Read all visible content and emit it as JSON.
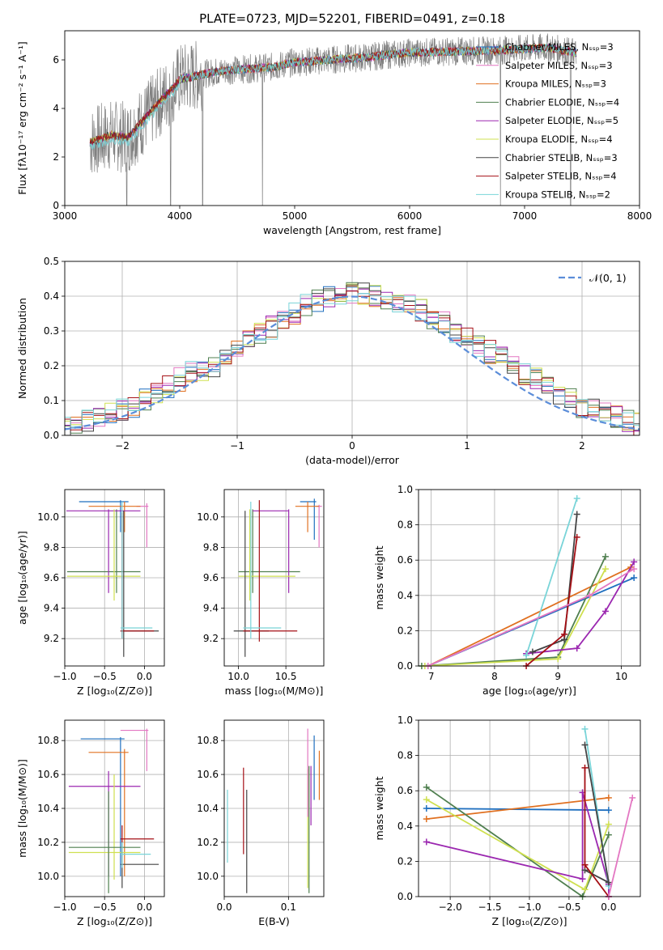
{
  "colors": {
    "chabrier_miles": "#1f6fbf",
    "salpeter_miles": "#e377c2",
    "kroupa_miles": "#e07020",
    "chabrier_elodie": "#4f7f4f",
    "salpeter_elodie": "#9b27b0",
    "kroupa_elodie": "#cfe050",
    "chabrier_stelib": "#444444",
    "salpeter_stelib": "#a50f15",
    "kroupa_stelib": "#79d4d8",
    "gauss": "#5b8dd9",
    "data": "#808080"
  },
  "chart_data": [
    {
      "id": "spectrum",
      "type": "line",
      "title": "PLATE=0723, MJD=52201, FIBERID=0491, z=0.18",
      "xlabel": "wavelength [Angstrom, rest frame]",
      "ylabel": "Flux [fλ10⁻¹⁷ erg cm⁻² s⁻¹ A⁻¹]",
      "xlim": [
        3000,
        8000
      ],
      "ylim": [
        0,
        7.2
      ],
      "xticks": [
        "3000",
        "4000",
        "5000",
        "6000",
        "7000",
        "8000"
      ],
      "yticks": [
        "0",
        "2",
        "4",
        "6"
      ],
      "grid": false,
      "legend_position": "top-right",
      "legend": [
        "Chabrier MILES, N_SSP=3",
        "Salpeter MILES, N_SSP=3",
        "Kroupa MILES, N_SSP=3",
        "Chabrier ELODIE, N_SSP=4",
        "Salpeter ELODIE, N_SSP=5",
        "Kroupa ELODIE, N_SSP=4",
        "Chabrier STELIB, N_SSP=3",
        "Salpeter STELIB, N_SSP=4",
        "Kroupa STELIB, N_SSP=2"
      ],
      "model_curve": {
        "x": [
          3220,
          3400,
          3550,
          3700,
          3850,
          3950,
          4000,
          4100,
          4300,
          4500,
          4800,
          5000,
          5300,
          5600,
          6000,
          6400,
          6800,
          7200,
          7450
        ],
        "y": [
          2.6,
          2.9,
          2.8,
          3.6,
          4.4,
          4.9,
          5.2,
          5.3,
          5.5,
          5.6,
          5.7,
          5.9,
          6.0,
          6.1,
          6.3,
          6.35,
          6.4,
          6.5,
          6.3
        ]
      }
    },
    {
      "id": "residuals",
      "type": "histogram",
      "xlabel": "(data-model)/error",
      "ylabel": "Normed distribution",
      "xlim": [
        -2.5,
        2.5
      ],
      "ylim": [
        0,
        0.5
      ],
      "xticks": [
        "−2",
        "−1",
        "0",
        "1",
        "2"
      ],
      "yticks": [
        "0.0",
        "0.1",
        "0.2",
        "0.3",
        "0.4",
        "0.5"
      ],
      "grid": true,
      "legend_position": "top-right",
      "legend": [
        "𝒩(0, 1)"
      ],
      "bin_width": 0.1,
      "envelope": [
        0.022,
        0.03,
        0.04,
        0.05,
        0.06,
        0.07,
        0.085,
        0.1,
        0.12,
        0.14,
        0.16,
        0.18,
        0.19,
        0.2,
        0.22,
        0.24,
        0.27,
        0.29,
        0.31,
        0.33,
        0.35,
        0.37,
        0.39,
        0.4,
        0.41,
        0.41,
        0.41,
        0.4,
        0.39,
        0.38,
        0.37,
        0.36,
        0.34,
        0.32,
        0.3,
        0.28,
        0.26,
        0.24,
        0.22,
        0.2,
        0.18,
        0.16,
        0.14,
        0.12,
        0.1,
        0.085,
        0.07,
        0.06,
        0.05,
        0.04,
        0.03
      ]
    },
    {
      "id": "age_vs_Z",
      "type": "errorbar",
      "xlabel": "Z [log₁₀(Z/Z⊙)]",
      "ylabel": "age  [log₁₀(age/yr)]",
      "xlim": [
        -1.0,
        0.25
      ],
      "ylim": [
        9.02,
        10.18
      ],
      "xticks": [
        "−1.0",
        "−0.5",
        "0.0"
      ],
      "yticks": [
        "9.2",
        "9.4",
        "9.6",
        "9.8",
        "10.0"
      ],
      "grid": true,
      "points": [
        {
          "s": "chabrier_miles",
          "x": -0.3,
          "y": 10.1,
          "xl": -0.82,
          "xh": -0.2,
          "yl": 9.9,
          "yh": 10.11
        },
        {
          "s": "salpeter_miles",
          "x": 0.03,
          "y": 10.07,
          "xl": -0.1,
          "xh": 0.05,
          "yl": 9.8,
          "yh": 10.09
        },
        {
          "s": "kroupa_miles",
          "x": -0.25,
          "y": 10.07,
          "xl": -0.7,
          "xh": -0.05,
          "yl": 9.9,
          "yh": 10.1
        },
        {
          "s": "chabrier_elodie",
          "x": -0.35,
          "y": 9.64,
          "xl": -0.97,
          "xh": -0.05,
          "yl": 9.5,
          "yh": 10.05
        },
        {
          "s": "salpeter_elodie",
          "x": -0.45,
          "y": 10.04,
          "xl": -0.98,
          "xh": -0.05,
          "yl": 9.5,
          "yh": 10.05
        },
        {
          "s": "kroupa_elodie",
          "x": -0.38,
          "y": 9.61,
          "xl": -0.97,
          "xh": -0.05,
          "yl": 9.45,
          "yh": 10.05
        },
        {
          "s": "chabrier_stelib",
          "x": -0.26,
          "y": 9.25,
          "xl": -0.3,
          "xh": 0.18,
          "yl": 9.08,
          "yh": 10.04
        },
        {
          "s": "salpeter_stelib",
          "x": -0.28,
          "y": 9.25,
          "xl": -0.3,
          "xh": 0.12,
          "yl": 9.2,
          "yh": 10.03
        },
        {
          "s": "kroupa_stelib",
          "x": -0.28,
          "y": 9.27,
          "xl": -0.3,
          "xh": 0.1,
          "yl": 9.2,
          "yh": 10.1
        }
      ]
    },
    {
      "id": "age_vs_mass",
      "type": "errorbar",
      "xlabel": "mass [log₁₀(M/M⊙)]",
      "ylabel": "",
      "xlim": [
        9.85,
        10.9
      ],
      "ylim": [
        9.02,
        10.18
      ],
      "xticks": [
        "10.0",
        "10.5"
      ],
      "yticks": [
        "9.2",
        "9.4",
        "9.6",
        "9.8",
        "10.0"
      ],
      "grid": true,
      "points": [
        {
          "s": "chabrier_miles",
          "x": 10.8,
          "y": 10.1,
          "xl": 10.65,
          "xh": 10.82,
          "yl": 9.85,
          "yh": 10.12
        },
        {
          "s": "salpeter_miles",
          "x": 10.85,
          "y": 10.07,
          "xl": 10.82,
          "xh": 10.88,
          "yl": 9.8,
          "yh": 10.08
        },
        {
          "s": "kroupa_miles",
          "x": 10.73,
          "y": 10.07,
          "xl": 10.6,
          "xh": 10.85,
          "yl": 9.9,
          "yh": 10.1
        },
        {
          "s": "chabrier_elodie",
          "x": 10.15,
          "y": 9.64,
          "xl": 10.0,
          "xh": 10.65,
          "yl": 9.5,
          "yh": 10.05
        },
        {
          "s": "salpeter_elodie",
          "x": 10.53,
          "y": 10.04,
          "xl": 10.15,
          "xh": 10.53,
          "yl": 9.5,
          "yh": 10.05
        },
        {
          "s": "kroupa_elodie",
          "x": 10.12,
          "y": 9.61,
          "xl": 10.0,
          "xh": 10.6,
          "yl": 9.45,
          "yh": 10.05
        },
        {
          "s": "chabrier_stelib",
          "x": 10.07,
          "y": 9.25,
          "xl": 9.95,
          "xh": 10.32,
          "yl": 9.08,
          "yh": 10.04
        },
        {
          "s": "salpeter_stelib",
          "x": 10.22,
          "y": 9.25,
          "xl": 10.05,
          "xh": 10.62,
          "yl": 9.18,
          "yh": 10.11
        },
        {
          "s": "kroupa_stelib",
          "x": 10.13,
          "y": 9.27,
          "xl": 10.05,
          "xh": 10.45,
          "yl": 9.2,
          "yh": 10.1
        }
      ]
    },
    {
      "id": "weight_vs_age",
      "type": "line",
      "xlabel": "age  [log₁₀(age/yr)]",
      "ylabel": "mass weight",
      "xlim": [
        6.8,
        10.3
      ],
      "ylim": [
        0,
        1.0
      ],
      "xticks": [
        "7",
        "8",
        "9",
        "10"
      ],
      "yticks": [
        "0.0",
        "0.2",
        "0.4",
        "0.6",
        "0.8",
        "1.0"
      ],
      "grid": true,
      "series": [
        {
          "s": "chabrier_miles",
          "x": [
            6.95,
            10.2
          ],
          "y": [
            0.0,
            0.5
          ]
        },
        {
          "s": "kroupa_miles",
          "x": [
            6.95,
            10.15
          ],
          "y": [
            0.0,
            0.56
          ]
        },
        {
          "s": "chabrier_elodie",
          "x": [
            6.85,
            9.0,
            9.75
          ],
          "y": [
            0.0,
            0.05,
            0.62
          ]
        },
        {
          "s": "kroupa_elodie",
          "x": [
            6.9,
            9.0,
            9.75
          ],
          "y": [
            0.0,
            0.04,
            0.55
          ]
        },
        {
          "s": "salpeter_elodie",
          "x": [
            8.5,
            9.3,
            9.75,
            10.2
          ],
          "y": [
            0.07,
            0.1,
            0.31,
            0.59
          ]
        },
        {
          "s": "kroupa_stelib",
          "x": [
            8.5,
            9.3
          ],
          "y": [
            0.06,
            0.95
          ]
        },
        {
          "s": "chabrier_stelib",
          "x": [
            8.6,
            9.1,
            9.3
          ],
          "y": [
            0.08,
            0.15,
            0.86
          ]
        },
        {
          "s": "salpeter_stelib",
          "x": [
            8.5,
            9.1,
            9.3
          ],
          "y": [
            0.0,
            0.18,
            0.73
          ]
        },
        {
          "s": "salpeter_miles",
          "x": [
            6.95,
            9.5,
            10.2
          ],
          "y": [
            0.0,
            0.4,
            0.55
          ]
        }
      ]
    },
    {
      "id": "mass_vs_Z",
      "type": "errorbar",
      "xlabel": "Z [log₁₀(Z/Z⊙)]",
      "ylabel": "mass [log₁₀(M/M⊙)]",
      "xlim": [
        -1.0,
        0.25
      ],
      "ylim": [
        9.88,
        10.92
      ],
      "xticks": [
        "−1.0",
        "−0.5",
        "0.0"
      ],
      "yticks": [
        "10.0",
        "10.2",
        "10.4",
        "10.6",
        "10.8"
      ],
      "grid": true,
      "points": [
        {
          "s": "salpeter_miles",
          "x": 0.03,
          "y": 10.86,
          "xl": -0.3,
          "xh": 0.05,
          "yl": 10.62,
          "yh": 10.87
        },
        {
          "s": "chabrier_miles",
          "x": -0.3,
          "y": 10.81,
          "xl": -0.8,
          "xh": -0.25,
          "yl": 10.0,
          "yh": 10.82
        },
        {
          "s": "kroupa_miles",
          "x": -0.25,
          "y": 10.73,
          "xl": -0.7,
          "xh": -0.2,
          "yl": 10.0,
          "yh": 10.75
        },
        {
          "s": "salpeter_elodie",
          "x": -0.45,
          "y": 10.53,
          "xl": -0.95,
          "xh": -0.05,
          "yl": 10.0,
          "yh": 10.62
        },
        {
          "s": "kroupa_elodie",
          "x": -0.38,
          "y": 10.14,
          "xl": -0.95,
          "xh": -0.05,
          "yl": 9.98,
          "yh": 10.6
        },
        {
          "s": "chabrier_elodie",
          "x": -0.45,
          "y": 10.17,
          "xl": -0.95,
          "xh": -0.05,
          "yl": 9.9,
          "yh": 10.5
        },
        {
          "s": "salpeter_stelib",
          "x": -0.28,
          "y": 10.22,
          "xl": -0.3,
          "xh": 0.12,
          "yl": 10.08,
          "yh": 10.3
        },
        {
          "s": "chabrier_stelib",
          "x": -0.28,
          "y": 10.07,
          "xl": -0.3,
          "xh": 0.18,
          "yl": 9.93,
          "yh": 10.2
        },
        {
          "s": "kroupa_stelib",
          "x": -0.28,
          "y": 10.13,
          "xl": -0.3,
          "xh": 0.08,
          "yl": 10.05,
          "yh": 10.2
        }
      ]
    },
    {
      "id": "mass_vs_ebv",
      "type": "errorbar",
      "xlabel": "E(B-V)",
      "ylabel": "",
      "xlim": [
        0.0,
        0.155
      ],
      "ylim": [
        9.88,
        10.92
      ],
      "xticks": [
        "0.0",
        "0.1"
      ],
      "yticks": [
        "10.0",
        "10.2",
        "10.4",
        "10.6",
        "10.8"
      ],
      "grid": true,
      "points": [
        {
          "s": "kroupa_stelib",
          "x": 0.005,
          "y": 10.3,
          "xl": 0.005,
          "xh": 0.005,
          "yl": 10.08,
          "yh": 10.51
        },
        {
          "s": "salpeter_stelib",
          "x": 0.03,
          "y": 10.4,
          "xl": 0.03,
          "xh": 0.03,
          "yl": 10.13,
          "yh": 10.64
        },
        {
          "s": "chabrier_stelib",
          "x": 0.035,
          "y": 10.2,
          "xl": 0.035,
          "xh": 0.035,
          "yl": 9.9,
          "yh": 10.51
        },
        {
          "s": "kroupa_elodie",
          "x": 0.13,
          "y": 10.2,
          "xl": 0.13,
          "xh": 0.13,
          "yl": 9.93,
          "yh": 10.63
        },
        {
          "s": "chabrier_elodie",
          "x": 0.132,
          "y": 10.2,
          "xl": 0.132,
          "xh": 0.132,
          "yl": 9.9,
          "yh": 10.65
        },
        {
          "s": "salpeter_miles",
          "x": 0.13,
          "y": 10.7,
          "xl": 0.13,
          "xh": 0.13,
          "yl": 10.35,
          "yh": 10.87
        },
        {
          "s": "salpeter_elodie",
          "x": 0.135,
          "y": 10.5,
          "xl": 0.135,
          "xh": 0.135,
          "yl": 10.3,
          "yh": 10.65
        },
        {
          "s": "chabrier_miles",
          "x": 0.14,
          "y": 10.65,
          "xl": 0.14,
          "xh": 0.14,
          "yl": 10.45,
          "yh": 10.83
        },
        {
          "s": "kroupa_miles",
          "x": 0.148,
          "y": 10.6,
          "xl": 0.148,
          "xh": 0.148,
          "yl": 10.45,
          "yh": 10.74
        }
      ]
    },
    {
      "id": "weight_vs_Z",
      "type": "line",
      "xlabel": "Z [log₁₀(Z/Z⊙)]",
      "ylabel": "mass weight",
      "xlim": [
        -2.4,
        0.4
      ],
      "ylim": [
        0,
        1.0
      ],
      "xticks": [
        "−2.0",
        "−1.5",
        "−1.0",
        "−0.5",
        "0.0"
      ],
      "yticks": [
        "0.0",
        "0.2",
        "0.4",
        "0.6",
        "0.8",
        "1.0"
      ],
      "grid": true,
      "series": [
        {
          "s": "chabrier_miles",
          "x": [
            -2.3,
            0.0
          ],
          "y": [
            0.5,
            0.49
          ]
        },
        {
          "s": "kroupa_miles",
          "x": [
            -2.3,
            0.0
          ],
          "y": [
            0.44,
            0.56
          ]
        },
        {
          "s": "chabrier_elodie",
          "x": [
            -2.3,
            -0.33,
            0.0
          ],
          "y": [
            0.62,
            0.0,
            0.35
          ]
        },
        {
          "s": "kroupa_elodie",
          "x": [
            -2.3,
            -0.3,
            0.0
          ],
          "y": [
            0.55,
            0.04,
            0.41
          ]
        },
        {
          "s": "salpeter_elodie",
          "x": [
            -2.3,
            -0.33,
            -0.33,
            0.0,
            0.0
          ],
          "y": [
            0.31,
            0.1,
            0.59,
            0.07,
            0.0
          ]
        },
        {
          "s": "kroupa_stelib",
          "x": [
            -0.3,
            0.0
          ],
          "y": [
            0.95,
            0.06
          ]
        },
        {
          "s": "chabrier_stelib",
          "x": [
            -0.3,
            0.0,
            -0.3
          ],
          "y": [
            0.86,
            0.08,
            0.15
          ]
        },
        {
          "s": "salpeter_stelib",
          "x": [
            -0.3,
            -0.3,
            0.0
          ],
          "y": [
            0.73,
            0.18,
            0.0
          ]
        },
        {
          "s": "salpeter_miles",
          "x": [
            0.0,
            0.3
          ],
          "y": [
            0.0,
            0.56
          ]
        }
      ]
    }
  ]
}
